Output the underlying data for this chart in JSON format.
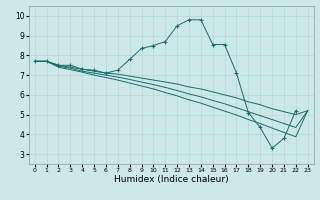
{
  "title": "",
  "xlabel": "Humidex (Indice chaleur)",
  "xlim": [
    -0.5,
    23.5
  ],
  "ylim": [
    2.5,
    10.5
  ],
  "xticks": [
    0,
    1,
    2,
    3,
    4,
    5,
    6,
    7,
    8,
    9,
    10,
    11,
    12,
    13,
    14,
    15,
    16,
    17,
    18,
    19,
    20,
    21,
    22,
    23
  ],
  "yticks": [
    3,
    4,
    5,
    6,
    7,
    8,
    9,
    10
  ],
  "bg_color": "#cce8e8",
  "line_color": "#1a6b6b",
  "grid_color": "#b8d8d8",
  "series": [
    {
      "x": [
        0,
        1,
        2,
        3,
        4,
        5,
        6,
        7,
        8,
        9,
        10,
        11,
        12,
        13,
        14,
        15,
        16,
        17,
        18,
        19,
        20,
        21,
        22
      ],
      "y": [
        7.7,
        7.7,
        7.5,
        7.5,
        7.3,
        7.25,
        7.1,
        7.25,
        7.8,
        8.35,
        8.5,
        8.7,
        9.5,
        9.8,
        9.8,
        8.55,
        8.55,
        7.1,
        5.1,
        4.35,
        3.3,
        3.8,
        5.2
      ],
      "marker": true
    },
    {
      "x": [
        0,
        1,
        2,
        3,
        4,
        5,
        6,
        7,
        8,
        9,
        10,
        11,
        12,
        13,
        14,
        15,
        16,
        17,
        18,
        19,
        20,
        21,
        22,
        23
      ],
      "y": [
        7.7,
        7.7,
        7.5,
        7.4,
        7.3,
        7.2,
        7.1,
        7.05,
        6.95,
        6.85,
        6.75,
        6.65,
        6.55,
        6.4,
        6.3,
        6.15,
        6.0,
        5.85,
        5.65,
        5.5,
        5.3,
        5.15,
        5.0,
        5.2
      ],
      "marker": false
    },
    {
      "x": [
        0,
        1,
        2,
        3,
        4,
        5,
        6,
        7,
        8,
        9,
        10,
        11,
        12,
        13,
        14,
        15,
        16,
        17,
        18,
        19,
        20,
        21,
        22,
        23
      ],
      "y": [
        7.7,
        7.7,
        7.45,
        7.35,
        7.2,
        7.1,
        7.0,
        6.9,
        6.78,
        6.65,
        6.52,
        6.38,
        6.22,
        6.05,
        5.9,
        5.72,
        5.55,
        5.35,
        5.15,
        4.95,
        4.75,
        4.55,
        4.35,
        5.2
      ],
      "marker": false
    },
    {
      "x": [
        0,
        1,
        2,
        3,
        4,
        5,
        6,
        7,
        8,
        9,
        10,
        11,
        12,
        13,
        14,
        15,
        16,
        17,
        18,
        19,
        20,
        21,
        22,
        23
      ],
      "y": [
        7.7,
        7.7,
        7.4,
        7.28,
        7.15,
        7.0,
        6.88,
        6.75,
        6.6,
        6.45,
        6.3,
        6.12,
        5.95,
        5.75,
        5.58,
        5.38,
        5.18,
        4.98,
        4.75,
        4.55,
        4.32,
        4.1,
        3.88,
        5.2
      ],
      "marker": false
    }
  ]
}
